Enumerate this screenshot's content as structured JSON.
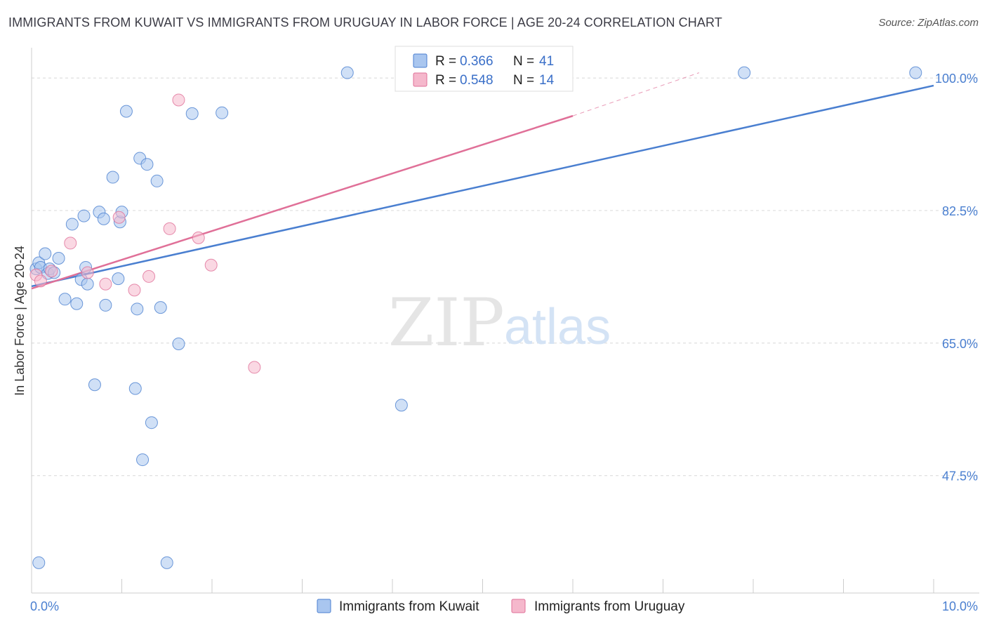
{
  "title": "IMMIGRANTS FROM KUWAIT VS IMMIGRANTS FROM URUGUAY IN LABOR FORCE | AGE 20-24 CORRELATION CHART",
  "source": "Source: ZipAtlas.com",
  "watermark": {
    "zip": "ZIP",
    "atlas": "atlas"
  },
  "colors": {
    "kuwait": "#4a7fd0",
    "kuwait_fill": "#a9c6ef",
    "uruguay": "#e07098",
    "uruguay_fill": "#f5b8cc",
    "tick_text": "#4a7fd0"
  },
  "chart_data": {
    "type": "scatter",
    "ylabel": "In Labor Force | Age 20-24",
    "xlabel": "",
    "xlim": [
      0,
      10
    ],
    "ylim": [
      32,
      104
    ],
    "x_tick_labels": [
      {
        "value": 0,
        "label": "0.0%"
      },
      {
        "value": 10,
        "label": "10.0%"
      }
    ],
    "y_ticks": [
      {
        "value": 100,
        "label": "100.0%"
      },
      {
        "value": 82.5,
        "label": "82.5%"
      },
      {
        "value": 65,
        "label": "65.0%"
      },
      {
        "value": 47.5,
        "label": "47.5%"
      }
    ],
    "grid": true,
    "legend_position": "top-center",
    "legend": [
      {
        "r_label": "R = ",
        "r_value": "0.366",
        "n_label": "N = ",
        "n_value": "41"
      },
      {
        "r_label": "R = ",
        "r_value": "0.548",
        "n_label": "N = ",
        "n_value": "14"
      }
    ],
    "series": [
      {
        "name": "Immigrants from Kuwait",
        "points": [
          [
            0.05,
            74.8
          ],
          [
            0.08,
            75.6
          ],
          [
            0.1,
            75.0
          ],
          [
            0.15,
            76.8
          ],
          [
            0.18,
            74.2
          ],
          [
            0.2,
            74.8
          ],
          [
            0.25,
            74.3
          ],
          [
            0.3,
            76.2
          ],
          [
            0.37,
            70.8
          ],
          [
            0.45,
            80.7
          ],
          [
            0.5,
            70.2
          ],
          [
            0.55,
            73.4
          ],
          [
            0.58,
            81.8
          ],
          [
            0.62,
            72.8
          ],
          [
            0.7,
            59.5
          ],
          [
            0.75,
            82.3
          ],
          [
            0.8,
            81.4
          ],
          [
            0.82,
            70.0
          ],
          [
            0.9,
            86.9
          ],
          [
            0.96,
            73.5
          ],
          [
            0.98,
            81.0
          ],
          [
            1.0,
            82.3
          ],
          [
            1.05,
            95.6
          ],
          [
            1.15,
            59.0
          ],
          [
            1.17,
            69.5
          ],
          [
            1.2,
            89.4
          ],
          [
            1.23,
            49.6
          ],
          [
            1.28,
            88.6
          ],
          [
            1.33,
            54.5
          ],
          [
            1.39,
            86.4
          ],
          [
            1.43,
            69.7
          ],
          [
            1.63,
            64.9
          ],
          [
            1.78,
            95.3
          ],
          [
            2.11,
            95.4
          ],
          [
            3.5,
            100.7
          ],
          [
            4.1,
            56.8
          ],
          [
            7.9,
            100.7
          ],
          [
            9.8,
            100.7
          ],
          [
            0.08,
            36.0
          ],
          [
            1.5,
            36.0
          ],
          [
            0.6,
            75.0
          ]
        ]
      },
      {
        "name": "Immigrants from Uruguay",
        "points": [
          [
            0.05,
            74.0
          ],
          [
            0.1,
            73.2
          ],
          [
            0.22,
            74.5
          ],
          [
            0.43,
            78.2
          ],
          [
            0.62,
            74.3
          ],
          [
            0.82,
            72.8
          ],
          [
            0.97,
            81.6
          ],
          [
            1.14,
            72.0
          ],
          [
            1.3,
            73.8
          ],
          [
            1.53,
            80.1
          ],
          [
            1.63,
            97.1
          ],
          [
            1.85,
            78.9
          ],
          [
            1.99,
            75.3
          ],
          [
            2.47,
            61.8
          ]
        ]
      }
    ],
    "trendlines": [
      {
        "series": "Immigrants from Kuwait",
        "x0": 0,
        "y0": 72.5,
        "x1": 10,
        "y1": 99.0
      },
      {
        "series": "Immigrants from Uruguay",
        "x0": 0,
        "y0": 72.2,
        "x1": 6,
        "y1": 95.0,
        "dashed_to_x": 7.4,
        "dashed_to_y": 100.7
      }
    ]
  }
}
